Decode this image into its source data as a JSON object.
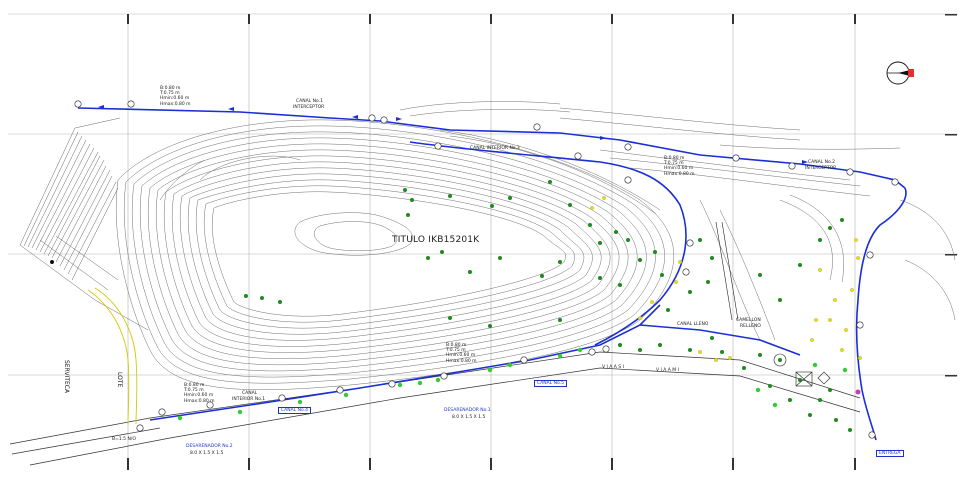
{
  "drawing": {
    "title": "TITULO IKB15201K",
    "labels": {
      "canal1": "CANAL No.1",
      "canal1_sub": "INTERCEPTOR",
      "canal2": "CANAL No.2",
      "canal2_sub": "INTERCEPTOR",
      "canal_interior3": "CANAL INTERIOR No.3",
      "canal_lower": "CANAL",
      "canal_lower_sub": "INTERIOR No.1",
      "canal5": "CANAL No.5",
      "canal_box": "CANAL No.4",
      "desarenador1": "DESARENADOR No.1",
      "desarenador1_dim": "8.0 X 1.5 X 1.5",
      "desarenador2": "DESARENADOR No.2",
      "desarenador2_dim": "8.0 X 1.5 X 1.5",
      "canal_lleno": "CANAL LLENO",
      "camellon1": "CAMELLON",
      "camellon1_sub": "RELLENO",
      "servitecca": "SERVITECA",
      "lote": "LOTE",
      "entrega": "ENTREGA",
      "via1": "V I A   A   S I",
      "via2": "V I A   A   M I",
      "b_label": "B=1.5 N/O"
    },
    "specs": {
      "spec1": [
        "B:0.80 m",
        "T:0.75 m",
        "Hmin:0.60 m",
        "Hmax:0.80 m"
      ],
      "spec2": [
        "B:0.80 m",
        "T:0.75 m",
        "Hmin:0.60 m",
        "Hmax:0.80 m"
      ],
      "spec3": [
        "B:0.80 m",
        "T:0.75 m",
        "Hmin:0.60 m",
        "Hmax:0.80 m"
      ],
      "spec4": [
        "B:0.80 m",
        "T:0.75 m",
        "Hmin:0.60 m",
        "Hmax:0.80 m"
      ]
    },
    "colors": {
      "channel": "#1a2fd6",
      "contour": "#6e6e6e",
      "grid": "#b4b4b4",
      "tree_green": "#1f8a1f",
      "tree_light": "#33cc33",
      "tree_yellow": "#e8e000",
      "north_arrow": "#e03030",
      "road_yellow": "#d8c800"
    },
    "north_arrow": "north-arrow-icon"
  }
}
